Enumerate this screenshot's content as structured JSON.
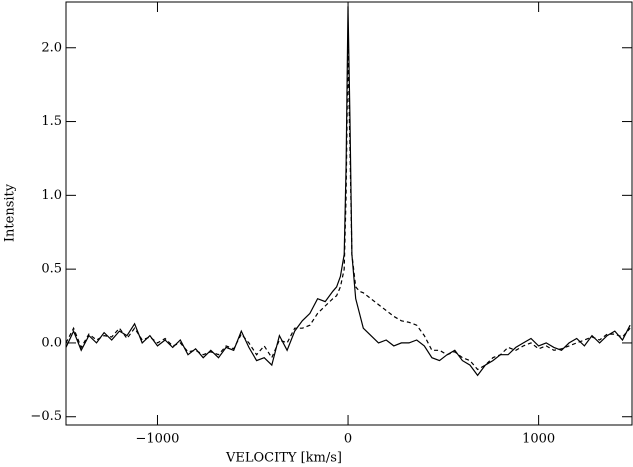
{
  "chart_data": {
    "type": "line",
    "x_label": "VELOCITY [km/s]",
    "y_label": "Intensity",
    "xlim": [
      -1480,
      1490
    ],
    "ylim": [
      -0.556,
      2.31
    ],
    "xticks": [
      {
        "value": -1000,
        "label": "−1000"
      },
      0,
      1000
    ],
    "yticks": [
      {
        "value": -0.5,
        "label": "−0.5"
      },
      {
        "value": 0,
        "label": "0.0"
      },
      {
        "value": 0.5,
        "label": "0.5"
      },
      {
        "value": 1,
        "label": "1.0"
      },
      {
        "value": 1.5,
        "label": "1.5"
      },
      {
        "value": 2,
        "label": "2.0"
      }
    ],
    "x": [
      -1480,
      -1440,
      -1400,
      -1360,
      -1320,
      -1280,
      -1240,
      -1200,
      -1160,
      -1120,
      -1080,
      -1040,
      -1000,
      -960,
      -920,
      -880,
      -840,
      -800,
      -760,
      -720,
      -680,
      -640,
      -600,
      -560,
      -520,
      -480,
      -440,
      -400,
      -360,
      -320,
      -280,
      -240,
      -200,
      -160,
      -120,
      -80,
      -60,
      -40,
      -20,
      -10,
      0,
      10,
      20,
      40,
      60,
      80,
      120,
      160,
      200,
      240,
      280,
      320,
      360,
      400,
      440,
      480,
      520,
      560,
      600,
      640,
      680,
      720,
      760,
      800,
      840,
      880,
      920,
      960,
      1000,
      1040,
      1080,
      1120,
      1160,
      1200,
      1240,
      1280,
      1320,
      1360,
      1400,
      1440,
      1480
    ],
    "series": [
      {
        "color": "#000000",
        "style": "solid",
        "values": [
          -0.03,
          0.08,
          -0.05,
          0.05,
          0.0,
          0.07,
          0.02,
          0.08,
          0.05,
          0.13,
          0.0,
          0.05,
          -0.02,
          0.02,
          -0.03,
          0.02,
          -0.08,
          -0.04,
          -0.1,
          -0.05,
          -0.1,
          -0.03,
          -0.05,
          0.08,
          -0.03,
          -0.12,
          -0.1,
          -0.15,
          0.05,
          -0.05,
          0.08,
          0.15,
          0.2,
          0.3,
          0.28,
          0.35,
          0.38,
          0.45,
          0.6,
          1.2,
          2.28,
          1.5,
          0.6,
          0.3,
          0.2,
          0.1,
          0.05,
          0.0,
          0.02,
          -0.02,
          0.0,
          0.0,
          0.02,
          -0.02,
          -0.1,
          -0.12,
          -0.08,
          -0.05,
          -0.12,
          -0.15,
          -0.22,
          -0.15,
          -0.12,
          -0.08,
          -0.08,
          -0.03,
          0.0,
          0.03,
          -0.02,
          0.0,
          -0.03,
          -0.05,
          0.0,
          0.03,
          -0.02,
          0.05,
          0.0,
          0.05,
          0.08,
          0.02,
          0.12
        ]
      },
      {
        "color": "#000000",
        "style": "dashed",
        "values": [
          0.0,
          0.1,
          -0.03,
          0.06,
          0.02,
          0.05,
          0.04,
          0.1,
          0.03,
          0.1,
          0.02,
          0.04,
          0.0,
          0.03,
          -0.02,
          0.0,
          -0.06,
          -0.05,
          -0.08,
          -0.06,
          -0.08,
          -0.02,
          -0.04,
          0.06,
          0.0,
          -0.08,
          -0.02,
          -0.1,
          0.02,
          0.0,
          0.1,
          0.1,
          0.12,
          0.2,
          0.25,
          0.3,
          0.32,
          0.38,
          0.5,
          1.0,
          2.0,
          1.3,
          0.6,
          0.38,
          0.35,
          0.34,
          0.3,
          0.26,
          0.22,
          0.18,
          0.15,
          0.14,
          0.12,
          0.05,
          -0.05,
          -0.05,
          -0.08,
          -0.06,
          -0.1,
          -0.12,
          -0.18,
          -0.15,
          -0.1,
          -0.08,
          -0.03,
          -0.05,
          -0.02,
          0.0,
          -0.04,
          -0.02,
          -0.05,
          -0.04,
          -0.02,
          0.0,
          0.02,
          0.04,
          0.02,
          0.06,
          0.06,
          0.04,
          0.1
        ]
      }
    ]
  }
}
